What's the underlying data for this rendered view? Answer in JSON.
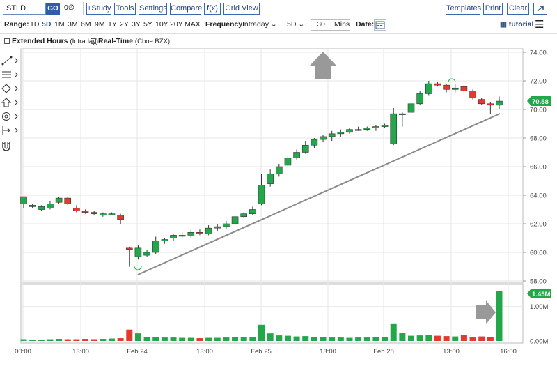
{
  "toolbar": {
    "symbol": "STLD",
    "go": "GO",
    "compare_icon": "0∅",
    "study": "+Study",
    "tools": "Tools",
    "settings": "Settings",
    "compare": "Compare",
    "fx": "f(x)",
    "grid_view": "Grid View",
    "templates": "Templates",
    "print": "Print",
    "clear": "Clear",
    "expand_icon": "arrow-expand-icon"
  },
  "range": {
    "label": "Range:",
    "options": [
      "1D",
      "5D",
      "1M",
      "3M",
      "6M",
      "9M",
      "1Y",
      "2Y",
      "3Y",
      "5Y",
      "10Y",
      "20Y",
      "MAX"
    ],
    "selected": "5D"
  },
  "frequency": {
    "label": "Frequency:",
    "value": "Intraday",
    "period": "5D",
    "interval": "30",
    "unit": "Mins"
  },
  "date": {
    "label": "Date:"
  },
  "tutorial": "tutorial",
  "options": {
    "extended_hours": "Extended Hours",
    "extended_hours_note": "(Intraday)",
    "real_time": "Real-Time",
    "real_time_note": "(Cboe BZX)"
  },
  "price_axis": [
    "74.00",
    "72.00",
    "70.00",
    "68.00",
    "66.00",
    "64.00",
    "62.00",
    "60.00",
    "58.00"
  ],
  "volume_axis": [
    "1.00M",
    "0.00M"
  ],
  "time_labels": [
    "00:00",
    "13:00",
    "Feb 24",
    "13:00",
    "Feb 25",
    "13:00",
    "Feb 28",
    "13:00",
    "16:00"
  ],
  "last_price": "70.58",
  "last_volume": "1.45M",
  "colors": {
    "up": "#22a84a",
    "down": "#e23b2e",
    "accent": "#2f5ea8",
    "price_tag": "#22a84a"
  },
  "chart_data": {
    "type": "candlestick",
    "symbol": "STLD",
    "ylim": [
      58,
      74
    ],
    "candles": [
      {
        "o": 63.4,
        "h": 63.9,
        "l": 63.1,
        "c": 63.9
      },
      {
        "o": 63.2,
        "h": 63.4,
        "l": 63.1,
        "c": 63.3
      },
      {
        "o": 63.0,
        "h": 63.3,
        "l": 62.9,
        "c": 63.2
      },
      {
        "o": 63.1,
        "h": 63.6,
        "l": 63.0,
        "c": 63.4
      },
      {
        "o": 63.5,
        "h": 63.9,
        "l": 63.4,
        "c": 63.8
      },
      {
        "o": 63.8,
        "h": 63.9,
        "l": 63.3,
        "c": 63.4
      },
      {
        "o": 63.1,
        "h": 63.3,
        "l": 62.8,
        "c": 62.9
      },
      {
        "o": 62.9,
        "h": 63.0,
        "l": 62.7,
        "c": 62.8
      },
      {
        "o": 62.8,
        "h": 62.9,
        "l": 62.6,
        "c": 62.7
      },
      {
        "o": 62.6,
        "h": 62.8,
        "l": 62.5,
        "c": 62.7
      },
      {
        "o": 62.7,
        "h": 62.8,
        "l": 62.6,
        "c": 62.7
      },
      {
        "o": 62.6,
        "h": 62.7,
        "l": 62.0,
        "c": 62.3
      },
      {
        "o": 60.3,
        "h": 60.4,
        "l": 59.0,
        "c": 60.2
      },
      {
        "o": 59.7,
        "h": 60.5,
        "l": 59.5,
        "c": 60.3
      },
      {
        "o": 59.8,
        "h": 60.2,
        "l": 59.7,
        "c": 60.0
      },
      {
        "o": 60.0,
        "h": 61.1,
        "l": 59.9,
        "c": 60.8
      },
      {
        "o": 60.8,
        "h": 61.0,
        "l": 60.6,
        "c": 60.9
      },
      {
        "o": 61.0,
        "h": 61.3,
        "l": 60.8,
        "c": 61.2
      },
      {
        "o": 61.2,
        "h": 61.4,
        "l": 61.0,
        "c": 61.2
      },
      {
        "o": 61.2,
        "h": 61.6,
        "l": 61.0,
        "c": 61.4
      },
      {
        "o": 61.4,
        "h": 61.6,
        "l": 61.2,
        "c": 61.3
      },
      {
        "o": 61.3,
        "h": 61.9,
        "l": 61.2,
        "c": 61.7
      },
      {
        "o": 61.7,
        "h": 62.0,
        "l": 61.5,
        "c": 61.8
      },
      {
        "o": 61.8,
        "h": 62.2,
        "l": 61.6,
        "c": 62.0
      },
      {
        "o": 62.0,
        "h": 62.6,
        "l": 61.9,
        "c": 62.5
      },
      {
        "o": 62.5,
        "h": 62.8,
        "l": 62.4,
        "c": 62.7
      },
      {
        "o": 62.7,
        "h": 63.2,
        "l": 62.6,
        "c": 63.0
      },
      {
        "o": 63.4,
        "h": 65.5,
        "l": 63.3,
        "c": 64.7
      },
      {
        "o": 64.8,
        "h": 65.8,
        "l": 64.6,
        "c": 65.5
      },
      {
        "o": 65.5,
        "h": 66.2,
        "l": 65.3,
        "c": 66.0
      },
      {
        "o": 66.1,
        "h": 66.8,
        "l": 65.9,
        "c": 66.6
      },
      {
        "o": 66.6,
        "h": 67.2,
        "l": 66.5,
        "c": 67.0
      },
      {
        "o": 67.0,
        "h": 67.8,
        "l": 66.9,
        "c": 67.5
      },
      {
        "o": 67.5,
        "h": 68.0,
        "l": 67.3,
        "c": 67.9
      },
      {
        "o": 67.9,
        "h": 68.2,
        "l": 67.7,
        "c": 68.1
      },
      {
        "o": 68.1,
        "h": 68.5,
        "l": 67.8,
        "c": 68.3
      },
      {
        "o": 68.3,
        "h": 68.6,
        "l": 68.1,
        "c": 68.4
      },
      {
        "o": 68.4,
        "h": 68.7,
        "l": 68.3,
        "c": 68.6
      },
      {
        "o": 68.6,
        "h": 68.8,
        "l": 68.5,
        "c": 68.6
      },
      {
        "o": 68.6,
        "h": 68.8,
        "l": 68.5,
        "c": 68.7
      },
      {
        "o": 68.7,
        "h": 68.9,
        "l": 68.5,
        "c": 68.8
      },
      {
        "o": 68.8,
        "h": 69.0,
        "l": 68.7,
        "c": 68.9
      },
      {
        "o": 67.6,
        "h": 70.1,
        "l": 67.5,
        "c": 69.7
      },
      {
        "o": 69.7,
        "h": 69.8,
        "l": 68.8,
        "c": 69.7
      },
      {
        "o": 69.8,
        "h": 70.6,
        "l": 69.7,
        "c": 70.4
      },
      {
        "o": 70.4,
        "h": 71.3,
        "l": 70.3,
        "c": 71.1
      },
      {
        "o": 71.1,
        "h": 72.0,
        "l": 71.0,
        "c": 71.8
      },
      {
        "o": 71.8,
        "h": 71.9,
        "l": 71.6,
        "c": 71.7
      },
      {
        "o": 71.7,
        "h": 71.8,
        "l": 71.2,
        "c": 71.4
      },
      {
        "o": 71.4,
        "h": 71.8,
        "l": 71.2,
        "c": 71.5
      },
      {
        "o": 71.6,
        "h": 71.7,
        "l": 71.1,
        "c": 71.3
      },
      {
        "o": 71.3,
        "h": 71.4,
        "l": 70.7,
        "c": 70.8
      },
      {
        "o": 70.7,
        "h": 70.8,
        "l": 70.3,
        "c": 70.4
      },
      {
        "o": 70.4,
        "h": 70.5,
        "l": 69.7,
        "c": 70.3
      },
      {
        "o": 70.3,
        "h": 70.9,
        "l": 70.0,
        "c": 70.58
      }
    ],
    "volume": [
      0.05,
      0.03,
      0.04,
      0.05,
      0.06,
      0.05,
      0.05,
      0.06,
      0.05,
      0.06,
      0.07,
      0.08,
      0.33,
      0.22,
      0.12,
      0.11,
      0.1,
      0.1,
      0.09,
      0.09,
      0.08,
      0.09,
      0.09,
      0.1,
      0.11,
      0.11,
      0.12,
      0.47,
      0.22,
      0.16,
      0.15,
      0.13,
      0.14,
      0.12,
      0.11,
      0.1,
      0.1,
      0.09,
      0.1,
      0.1,
      0.11,
      0.12,
      0.49,
      0.23,
      0.15,
      0.16,
      0.17,
      0.15,
      0.14,
      0.13,
      0.18,
      0.12,
      0.13,
      0.12,
      1.45
    ],
    "vol_ylim": [
      0,
      1.6
    ]
  }
}
